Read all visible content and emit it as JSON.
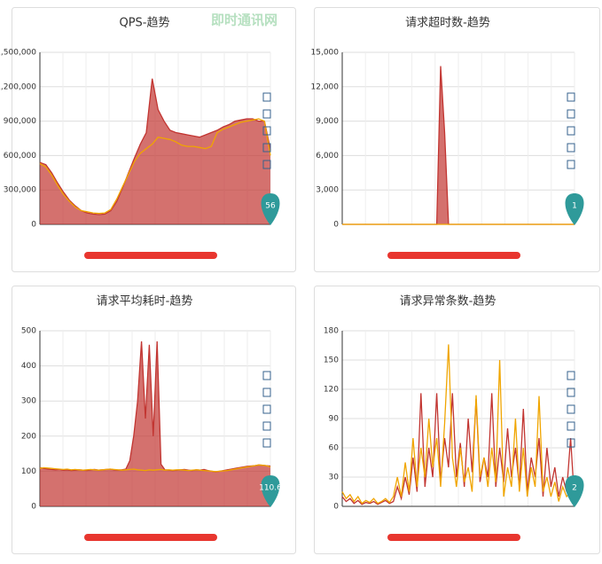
{
  "watermark": "即时通讯网",
  "charts": [
    {
      "chart_data": {
        "type": "line",
        "title": "QPS-趋势",
        "ylim": [
          0,
          1500000
        ],
        "yticks": [
          0,
          {
            "value": 300000,
            "label": "300,000"
          },
          {
            "value": 600000,
            "label": "600,000"
          },
          {
            "value": 900000,
            "label": "900,000"
          },
          {
            "value": 1200000,
            "label": "1,200,000"
          },
          {
            "value": 1500000,
            "label": "1,500,000"
          }
        ],
        "grid": true,
        "pin": "56",
        "series": [
          {
            "color": "#c23531",
            "area": true,
            "values": [
              540000,
              520000,
              450000,
              360000,
              280000,
              210000,
              160000,
              120000,
              100000,
              90000,
              85000,
              90000,
              120000,
              200000,
              320000,
              450000,
              580000,
              700000,
              800000,
              1270000,
              1000000,
              900000,
              820000,
              800000,
              790000,
              780000,
              770000,
              760000,
              780000,
              800000,
              820000,
              850000,
              870000,
              900000,
              910000,
              920000,
              920000,
              900000,
              900000,
              650000
            ]
          },
          {
            "color": "#f0a500",
            "area": false,
            "values": [
              530000,
              500000,
              430000,
              340000,
              260000,
              200000,
              150000,
              120000,
              110000,
              100000,
              95000,
              100000,
              130000,
              220000,
              330000,
              440000,
              550000,
              620000,
              660000,
              700000,
              760000,
              750000,
              740000,
              720000,
              690000,
              680000,
              680000,
              670000,
              660000,
              680000,
              800000,
              830000,
              850000,
              870000,
              890000,
              900000,
              910000,
              920000,
              900000,
              600000
            ]
          }
        ]
      }
    },
    {
      "chart_data": {
        "type": "line",
        "title": "请求超时数-趋势",
        "ylim": [
          0,
          15000
        ],
        "yticks": [
          0,
          {
            "value": 3000,
            "label": "3,000"
          },
          {
            "value": 6000,
            "label": "6,000"
          },
          {
            "value": 9000,
            "label": "9,000"
          },
          {
            "value": 12000,
            "label": "12,000"
          },
          {
            "value": 15000,
            "label": "15,000"
          }
        ],
        "grid": true,
        "pin": "1",
        "series": [
          {
            "color": "#c23531",
            "area": true,
            "values": [
              0,
              0,
              0,
              0,
              0,
              0,
              0,
              0,
              0,
              0,
              0,
              0,
              0,
              0,
              0,
              0,
              0,
              0,
              0,
              0,
              0,
              0,
              0,
              0,
              0,
              13800,
              8000,
              0,
              0,
              0,
              0,
              0,
              0,
              0,
              0,
              0,
              0,
              0,
              0,
              0,
              0,
              0,
              0,
              0,
              0,
              0,
              0,
              0,
              0,
              0,
              0,
              0,
              0,
              0,
              0,
              0,
              0,
              0,
              0,
              0
            ]
          },
          {
            "color": "#f0a500",
            "area": false,
            "values": [
              0,
              0,
              0,
              0,
              0,
              0,
              0,
              0,
              0,
              0,
              0,
              0,
              0,
              0,
              0,
              0,
              0,
              0,
              0,
              0,
              0,
              0,
              0,
              0,
              0,
              0,
              0,
              0,
              0,
              0,
              0,
              0,
              0,
              0,
              0,
              0,
              0,
              0,
              0,
              0,
              0,
              0,
              0,
              0,
              0,
              0,
              0,
              0,
              0,
              0,
              0,
              0,
              0,
              0,
              0,
              0,
              0,
              0,
              0,
              0
            ]
          }
        ]
      }
    },
    {
      "chart_data": {
        "type": "line",
        "title": "请求平均耗时-趋势",
        "ylim": [
          0,
          500
        ],
        "yticks": [
          0,
          100,
          200,
          300,
          400,
          500
        ],
        "grid": true,
        "pin": "110.6",
        "series": [
          {
            "color": "#c23531",
            "area": true,
            "values": [
              110,
              108,
              106,
              105,
              104,
              105,
              103,
              104,
              102,
              103,
              104,
              103,
              102,
              104,
              105,
              103,
              104,
              105,
              106,
              104,
              103,
              104,
              106,
              130,
              200,
              300,
              470,
              250,
              460,
              200,
              470,
              120,
              104,
              103,
              102,
              103,
              104,
              105,
              103,
              102,
              104,
              103,
              105,
              102,
              100,
              98,
              100,
              102,
              104,
              106,
              108,
              110,
              112,
              114,
              115,
              116,
              118,
              117,
              116,
              115
            ]
          },
          {
            "color": "#f0a500",
            "area": false,
            "values": [
              108,
              110,
              109,
              108,
              107,
              106,
              105,
              106,
              104,
              105,
              104,
              103,
              104,
              105,
              104,
              103,
              104,
              105,
              106,
              105,
              104,
              103,
              104,
              105,
              106,
              104,
              103,
              102,
              104,
              103,
              104,
              105,
              103,
              104,
              103,
              104,
              104,
              103,
              102,
              103,
              104,
              103,
              102,
              101,
              100,
              99,
              100,
              101,
              102,
              104,
              106,
              108,
              110,
              112,
              114,
              116,
              118,
              117,
              116,
              112
            ]
          }
        ]
      }
    },
    {
      "chart_data": {
        "type": "line",
        "title": "请求异常条数-趋势",
        "ylim": [
          0,
          180
        ],
        "yticks": [
          0,
          30,
          60,
          90,
          120,
          150,
          180
        ],
        "grid": true,
        "pin": "2",
        "series": [
          {
            "color": "#c23531",
            "area": false,
            "values": [
              10,
              5,
              8,
              3,
              6,
              2,
              4,
              3,
              5,
              2,
              4,
              6,
              3,
              5,
              20,
              8,
              30,
              12,
              50,
              15,
              116,
              20,
              60,
              30,
              116,
              25,
              70,
              40,
              116,
              30,
              65,
              20,
              90,
              35,
              110,
              25,
              50,
              30,
              116,
              20,
              60,
              25,
              80,
              30,
              60,
              20,
              100,
              15,
              50,
              30,
              70,
              10,
              60,
              20,
              40,
              10,
              30,
              15,
              70,
              5
            ]
          },
          {
            "color": "#f0a500",
            "area": false,
            "values": [
              15,
              8,
              12,
              5,
              10,
              3,
              6,
              4,
              8,
              3,
              5,
              8,
              4,
              10,
              30,
              10,
              45,
              15,
              70,
              20,
              60,
              30,
              90,
              40,
              70,
              20,
              85,
              166,
              50,
              20,
              60,
              25,
              40,
              15,
              114,
              30,
              50,
              20,
              60,
              25,
              150,
              10,
              40,
              20,
              90,
              15,
              60,
              10,
              40,
              20,
              113,
              15,
              30,
              10,
              25,
              5,
              20,
              10,
              15,
              3
            ]
          }
        ]
      }
    }
  ]
}
